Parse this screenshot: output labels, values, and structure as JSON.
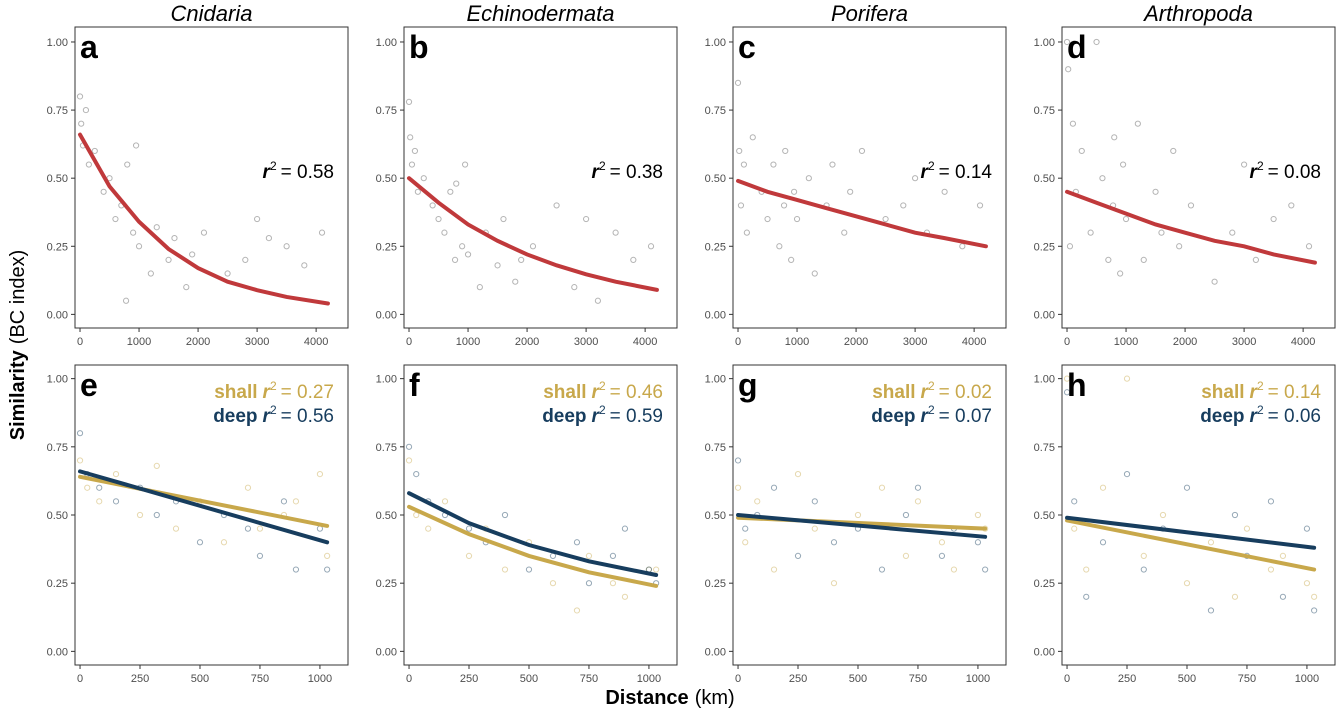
{
  "ylabel_main": "Similarity",
  "ylabel_unit": "(BC index)",
  "xlabel_main": "Distance",
  "xlabel_unit": "(km)",
  "chart_data": [
    {
      "type": "scatter",
      "title": "Cnidaria",
      "panel_label": "a",
      "r2_symbol": "r",
      "r2_power": "2",
      "r2_text": "= 0.58",
      "xlim": [
        -85,
        4540
      ],
      "ylim": [
        -0.05,
        1.055
      ],
      "xticks": [
        0,
        1000,
        2000,
        3000,
        4000
      ],
      "yticks": [
        {
          "value": 0,
          "label": "0.00"
        },
        {
          "value": 0.25,
          "label": "0.25"
        },
        {
          "value": 0.5,
          "label": "0.50"
        },
        {
          "value": 0.75,
          "label": "0.75"
        },
        {
          "value": 1,
          "label": "1.00"
        }
      ],
      "series": [
        {
          "color": "#595959",
          "x": [
            0,
            20,
            50,
            100,
            150,
            250,
            400,
            500,
            600,
            700,
            780,
            800,
            900,
            950,
            1000,
            1200,
            1300,
            1500,
            1600,
            1800,
            1900,
            2100,
            2500,
            2800,
            3000,
            3200,
            3500,
            3800,
            4100
          ],
          "values": [
            0.8,
            0.7,
            0.62,
            0.75,
            0.55,
            0.6,
            0.45,
            0.5,
            0.35,
            0.4,
            0.05,
            0.55,
            0.3,
            0.62,
            0.25,
            0.15,
            0.32,
            0.2,
            0.28,
            0.1,
            0.22,
            0.3,
            0.15,
            0.2,
            0.35,
            0.28,
            0.25,
            0.18,
            0.3
          ]
        }
      ],
      "fits": [
        {
          "color": "#c0393b",
          "x": [
            0,
            500,
            1000,
            1500,
            2000,
            2500,
            3000,
            3500,
            4200
          ],
          "values": [
            0.66,
            0.47,
            0.34,
            0.24,
            0.17,
            0.12,
            0.089,
            0.064,
            0.04
          ]
        }
      ]
    },
    {
      "type": "scatter",
      "title": "Echinodermata",
      "panel_label": "b",
      "r2_symbol": "r",
      "r2_power": "2",
      "r2_text": "= 0.38",
      "xlim": [
        -85,
        4540
      ],
      "ylim": [
        -0.05,
        1.055
      ],
      "xticks": [
        0,
        1000,
        2000,
        3000,
        4000
      ],
      "yticks": [
        {
          "value": 0,
          "label": "0.00"
        },
        {
          "value": 0.25,
          "label": "0.25"
        },
        {
          "value": 0.5,
          "label": "0.50"
        },
        {
          "value": 0.75,
          "label": "0.75"
        },
        {
          "value": 1,
          "label": "1.00"
        }
      ],
      "series": [
        {
          "color": "#595959",
          "x": [
            0,
            20,
            50,
            100,
            150,
            250,
            400,
            500,
            600,
            700,
            780,
            800,
            900,
            950,
            1000,
            1200,
            1300,
            1500,
            1600,
            1800,
            1900,
            2100,
            2500,
            2800,
            3000,
            3200,
            3500,
            3800,
            4100
          ],
          "values": [
            0.78,
            0.65,
            0.55,
            0.6,
            0.45,
            0.5,
            0.4,
            0.35,
            0.3,
            0.45,
            0.2,
            0.48,
            0.25,
            0.55,
            0.22,
            0.1,
            0.3,
            0.18,
            0.35,
            0.12,
            0.2,
            0.25,
            0.4,
            0.1,
            0.35,
            0.05,
            0.3,
            0.2,
            0.25
          ]
        }
      ],
      "fits": [
        {
          "color": "#c0393b",
          "x": [
            0,
            500,
            1000,
            1500,
            2000,
            2500,
            3000,
            3500,
            4200
          ],
          "values": [
            0.5,
            0.41,
            0.33,
            0.27,
            0.22,
            0.18,
            0.147,
            0.12,
            0.09
          ]
        }
      ]
    },
    {
      "type": "scatter",
      "title": "Porifera",
      "panel_label": "c",
      "r2_symbol": "r",
      "r2_power": "2",
      "r2_text": "= 0.14",
      "xlim": [
        -85,
        4540
      ],
      "ylim": [
        -0.05,
        1.055
      ],
      "xticks": [
        0,
        1000,
        2000,
        3000,
        4000
      ],
      "yticks": [
        {
          "value": 0,
          "label": "0.00"
        },
        {
          "value": 0.25,
          "label": "0.25"
        },
        {
          "value": 0.5,
          "label": "0.50"
        },
        {
          "value": 0.75,
          "label": "0.75"
        },
        {
          "value": 1,
          "label": "1.00"
        }
      ],
      "series": [
        {
          "color": "#595959",
          "x": [
            0,
            20,
            50,
            100,
            150,
            250,
            400,
            500,
            600,
            700,
            780,
            800,
            900,
            950,
            1000,
            1200,
            1300,
            1500,
            1600,
            1800,
            1900,
            2100,
            2500,
            2800,
            3000,
            3200,
            3500,
            3800,
            4100
          ],
          "values": [
            0.85,
            0.6,
            0.4,
            0.55,
            0.3,
            0.65,
            0.45,
            0.35,
            0.55,
            0.25,
            0.4,
            0.6,
            0.2,
            0.45,
            0.35,
            0.5,
            0.15,
            0.4,
            0.55,
            0.3,
            0.45,
            0.6,
            0.35,
            0.4,
            0.5,
            0.3,
            0.45,
            0.25,
            0.4
          ]
        }
      ],
      "fits": [
        {
          "color": "#c0393b",
          "x": [
            0,
            500,
            1000,
            1500,
            2000,
            2500,
            3000,
            3500,
            4200
          ],
          "values": [
            0.49,
            0.45,
            0.42,
            0.39,
            0.36,
            0.33,
            0.3,
            0.28,
            0.25
          ]
        }
      ]
    },
    {
      "type": "scatter",
      "title": "Arthropoda",
      "panel_label": "d",
      "r2_symbol": "r",
      "r2_power": "2",
      "r2_text": "= 0.08",
      "xlim": [
        -85,
        4540
      ],
      "ylim": [
        -0.05,
        1.055
      ],
      "xticks": [
        0,
        1000,
        2000,
        3000,
        4000
      ],
      "yticks": [
        {
          "value": 0,
          "label": "0.00"
        },
        {
          "value": 0.25,
          "label": "0.25"
        },
        {
          "value": 0.5,
          "label": "0.50"
        },
        {
          "value": 0.75,
          "label": "0.75"
        },
        {
          "value": 1,
          "label": "1.00"
        }
      ],
      "series": [
        {
          "color": "#595959",
          "x": [
            0,
            20,
            50,
            100,
            150,
            250,
            400,
            500,
            600,
            700,
            780,
            800,
            900,
            950,
            1000,
            1200,
            1300,
            1500,
            1600,
            1800,
            1900,
            2100,
            2500,
            2800,
            3000,
            3200,
            3500,
            3800,
            4100
          ],
          "values": [
            1.0,
            0.9,
            0.25,
            0.7,
            0.45,
            0.6,
            0.3,
            1.0,
            0.5,
            0.2,
            0.4,
            0.65,
            0.15,
            0.55,
            0.35,
            0.7,
            0.2,
            0.45,
            0.3,
            0.6,
            0.25,
            0.4,
            0.12,
            0.3,
            0.55,
            0.2,
            0.35,
            0.4,
            0.25
          ]
        }
      ],
      "fits": [
        {
          "color": "#c0393b",
          "x": [
            0,
            500,
            1000,
            1500,
            2000,
            2500,
            3000,
            3500,
            4200
          ],
          "values": [
            0.45,
            0.41,
            0.37,
            0.33,
            0.3,
            0.27,
            0.25,
            0.22,
            0.19
          ]
        }
      ]
    },
    {
      "type": "scatter",
      "panel_label": "e",
      "r2_symbol": "r",
      "r2_power": "2",
      "xlim": [
        -21,
        1117
      ],
      "ylim": [
        -0.05,
        1.05
      ],
      "xticks": [
        0,
        250,
        500,
        750,
        1000
      ],
      "yticks": [
        {
          "value": 0,
          "label": "0.00"
        },
        {
          "value": 0.25,
          "label": "0.25"
        },
        {
          "value": 0.5,
          "label": "0.50"
        },
        {
          "value": 0.75,
          "label": "0.75"
        },
        {
          "value": 1,
          "label": "1.00"
        }
      ],
      "series": [
        {
          "name": "shall",
          "color": "#c8a84b",
          "r2_text": "= 0.27",
          "x": [
            0,
            30,
            80,
            150,
            250,
            320,
            400,
            500,
            600,
            700,
            750,
            850,
            900,
            1000,
            1030
          ],
          "values": [
            0.7,
            0.6,
            0.55,
            0.65,
            0.5,
            0.68,
            0.45,
            0.55,
            0.4,
            0.6,
            0.45,
            0.5,
            0.55,
            0.65,
            0.35
          ]
        },
        {
          "name": "deep",
          "color": "#173d5e",
          "r2_text": "= 0.56",
          "x": [
            0,
            30,
            80,
            150,
            250,
            320,
            400,
            500,
            600,
            700,
            750,
            850,
            900,
            1000,
            1030
          ],
          "values": [
            0.8,
            0.65,
            0.6,
            0.55,
            0.6,
            0.5,
            0.55,
            0.4,
            0.5,
            0.45,
            0.35,
            0.55,
            0.3,
            0.45,
            0.3
          ]
        }
      ],
      "fits": [
        {
          "color": "#c8a84b",
          "x": [
            0,
            1030
          ],
          "values": [
            0.64,
            0.46
          ]
        },
        {
          "color": "#173d5e",
          "x": [
            0,
            1030
          ],
          "values": [
            0.66,
            0.4
          ]
        }
      ]
    },
    {
      "type": "scatter",
      "panel_label": "f",
      "r2_symbol": "r",
      "r2_power": "2",
      "xlim": [
        -21,
        1117
      ],
      "ylim": [
        -0.05,
        1.05
      ],
      "xticks": [
        0,
        250,
        500,
        750,
        1000
      ],
      "yticks": [
        {
          "value": 0,
          "label": "0.00"
        },
        {
          "value": 0.25,
          "label": "0.25"
        },
        {
          "value": 0.5,
          "label": "0.50"
        },
        {
          "value": 0.75,
          "label": "0.75"
        },
        {
          "value": 1,
          "label": "1.00"
        }
      ],
      "series": [
        {
          "name": "shall",
          "color": "#c8a84b",
          "r2_text": "= 0.46",
          "x": [
            0,
            30,
            80,
            150,
            250,
            320,
            400,
            500,
            600,
            700,
            750,
            850,
            900,
            1000,
            1030
          ],
          "values": [
            0.7,
            0.5,
            0.45,
            0.55,
            0.35,
            0.45,
            0.3,
            0.4,
            0.25,
            0.15,
            0.35,
            0.25,
            0.2,
            0.3,
            0.3
          ]
        },
        {
          "name": "deep",
          "color": "#173d5e",
          "r2_text": "= 0.59",
          "x": [
            0,
            30,
            80,
            150,
            250,
            320,
            400,
            500,
            600,
            700,
            750,
            850,
            900,
            1000,
            1030
          ],
          "values": [
            0.75,
            0.65,
            0.55,
            0.5,
            0.45,
            0.4,
            0.5,
            0.3,
            0.35,
            0.4,
            0.25,
            0.35,
            0.45,
            0.3,
            0.25
          ]
        }
      ],
      "fits": [
        {
          "color": "#c8a84b",
          "x": [
            0,
            250,
            500,
            750,
            1030
          ],
          "values": [
            0.53,
            0.43,
            0.35,
            0.29,
            0.24
          ]
        },
        {
          "color": "#173d5e",
          "x": [
            0,
            250,
            500,
            750,
            1030
          ],
          "values": [
            0.58,
            0.47,
            0.39,
            0.33,
            0.28
          ]
        }
      ]
    },
    {
      "type": "scatter",
      "panel_label": "g",
      "r2_symbol": "r",
      "r2_power": "2",
      "xlim": [
        -21,
        1117
      ],
      "ylim": [
        -0.05,
        1.05
      ],
      "xticks": [
        0,
        250,
        500,
        750,
        1000
      ],
      "yticks": [
        {
          "value": 0,
          "label": "0.00"
        },
        {
          "value": 0.25,
          "label": "0.25"
        },
        {
          "value": 0.5,
          "label": "0.50"
        },
        {
          "value": 0.75,
          "label": "0.75"
        },
        {
          "value": 1,
          "label": "1.00"
        }
      ],
      "series": [
        {
          "name": "shall",
          "color": "#c8a84b",
          "r2_text": "= 0.02",
          "x": [
            0,
            30,
            80,
            150,
            250,
            320,
            400,
            500,
            600,
            700,
            750,
            850,
            900,
            1000,
            1030
          ],
          "values": [
            0.6,
            0.4,
            0.55,
            0.3,
            0.65,
            0.45,
            0.25,
            0.5,
            0.6,
            0.35,
            0.55,
            0.4,
            0.3,
            0.5,
            0.45
          ]
        },
        {
          "name": "deep",
          "color": "#173d5e",
          "r2_text": "= 0.07",
          "x": [
            0,
            30,
            80,
            150,
            250,
            320,
            400,
            500,
            600,
            700,
            750,
            850,
            900,
            1000,
            1030
          ],
          "values": [
            0.7,
            0.45,
            0.5,
            0.6,
            0.35,
            0.55,
            0.4,
            0.45,
            0.3,
            0.5,
            0.6,
            0.35,
            0.45,
            0.4,
            0.3
          ]
        }
      ],
      "fits": [
        {
          "color": "#c8a84b",
          "x": [
            0,
            1030
          ],
          "values": [
            0.49,
            0.45
          ]
        },
        {
          "color": "#173d5e",
          "x": [
            0,
            1030
          ],
          "values": [
            0.5,
            0.42
          ]
        }
      ]
    },
    {
      "type": "scatter",
      "panel_label": "h",
      "r2_symbol": "r",
      "r2_power": "2",
      "xlim": [
        -21,
        1117
      ],
      "ylim": [
        -0.05,
        1.05
      ],
      "xticks": [
        0,
        250,
        500,
        750,
        1000
      ],
      "yticks": [
        {
          "value": 0,
          "label": "0.00"
        },
        {
          "value": 0.25,
          "label": "0.25"
        },
        {
          "value": 0.5,
          "label": "0.50"
        },
        {
          "value": 0.75,
          "label": "0.75"
        },
        {
          "value": 1,
          "label": "1.00"
        }
      ],
      "series": [
        {
          "name": "shall",
          "color": "#c8a84b",
          "r2_text": "= 0.14",
          "x": [
            0,
            30,
            80,
            150,
            250,
            320,
            400,
            500,
            600,
            700,
            750,
            850,
            900,
            1000,
            1030
          ],
          "values": [
            1.0,
            0.45,
            0.3,
            0.6,
            1.0,
            0.35,
            0.5,
            0.25,
            0.4,
            0.2,
            0.45,
            0.3,
            0.35,
            0.25,
            0.2
          ]
        },
        {
          "name": "deep",
          "color": "#173d5e",
          "r2_text": "= 0.06",
          "x": [
            0,
            30,
            80,
            150,
            250,
            320,
            400,
            500,
            600,
            700,
            750,
            850,
            900,
            1000,
            1030
          ],
          "values": [
            0.95,
            0.55,
            0.2,
            0.4,
            0.65,
            0.3,
            0.45,
            0.6,
            0.15,
            0.5,
            0.35,
            0.55,
            0.2,
            0.45,
            0.15
          ]
        }
      ],
      "fits": [
        {
          "color": "#c8a84b",
          "x": [
            0,
            1030
          ],
          "values": [
            0.48,
            0.3
          ]
        },
        {
          "color": "#173d5e",
          "x": [
            0,
            1030
          ],
          "values": [
            0.49,
            0.38
          ]
        }
      ]
    }
  ]
}
